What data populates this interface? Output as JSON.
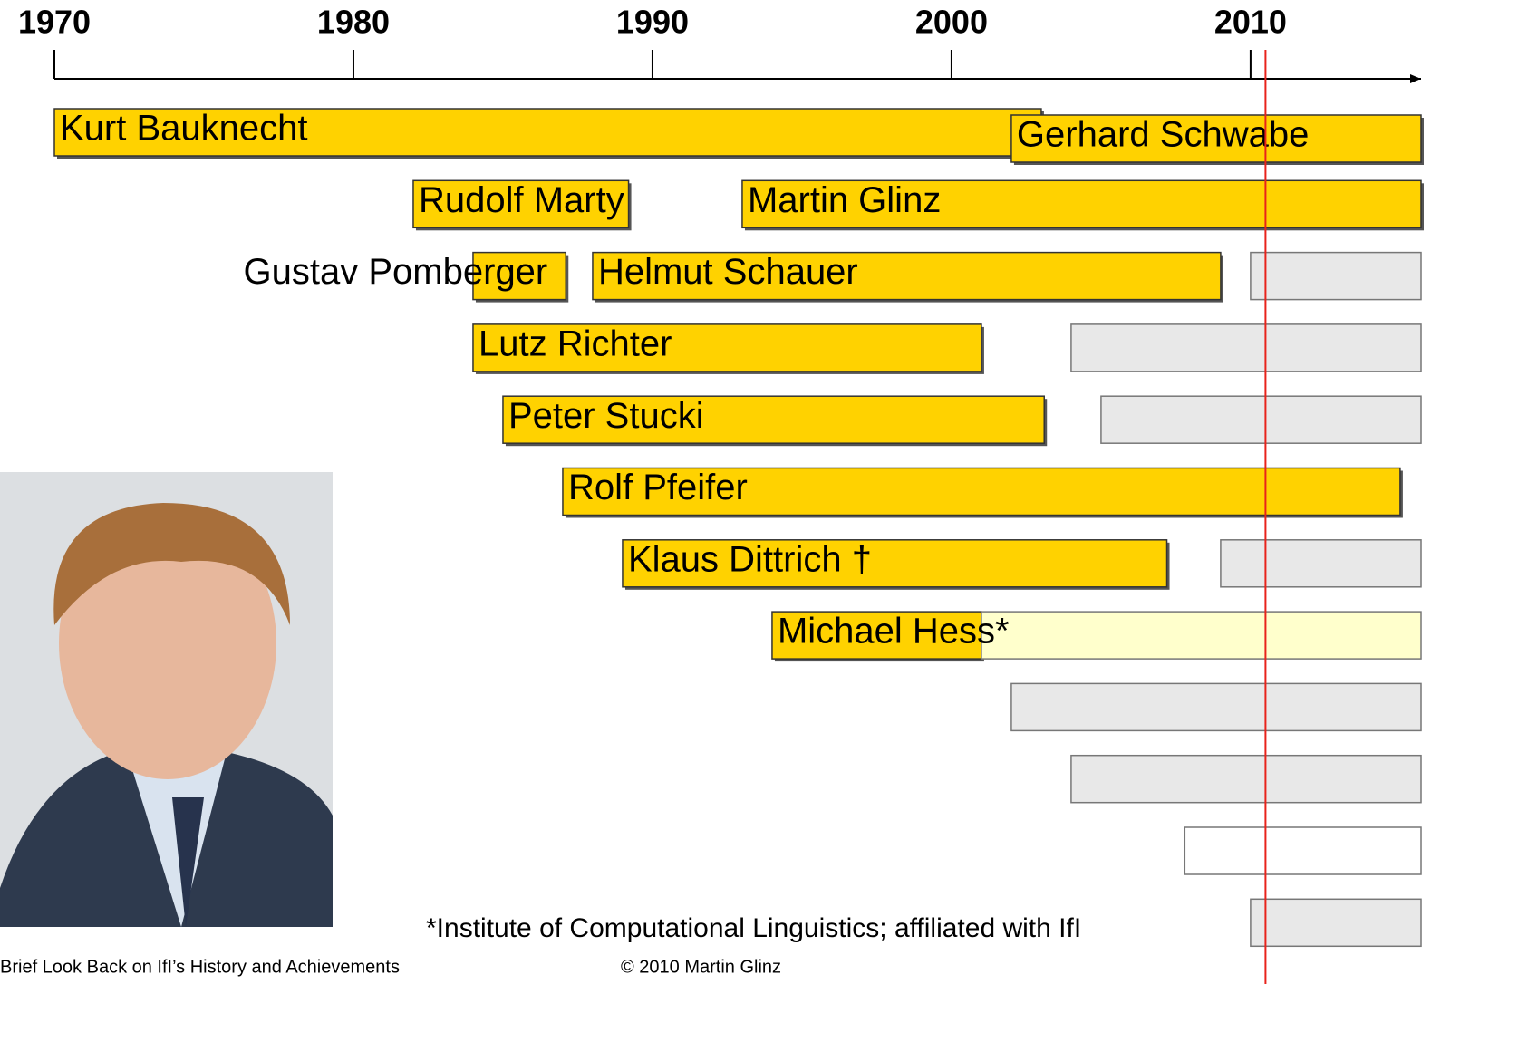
{
  "chart_data": {
    "type": "timeline",
    "xlim": [
      1970,
      2015.7
    ],
    "xticks": [
      1970,
      1980,
      1990,
      2000,
      2010
    ],
    "marker": {
      "value": 2010.5,
      "color": "#e8231b"
    },
    "rows": [
      {
        "bars": [
          {
            "label": "Kurt Bauknecht",
            "start": 1970,
            "end": 2003,
            "color": "#ffd200"
          },
          {
            "label": "Gerhard Schwabe",
            "start": 2002,
            "end": 2015.7,
            "color": "#ffd200"
          }
        ]
      },
      {
        "bars": [
          {
            "label": "Rudolf Marty",
            "start": 1982,
            "end": 1989.2,
            "color": "#ffd200"
          },
          {
            "label": "Martin Glinz",
            "start": 1993,
            "end": 2015.7,
            "color": "#ffd200"
          }
        ]
      },
      {
        "bars": [
          {
            "label": "Gustav Pomberger",
            "start": 1984,
            "end": 1987.1,
            "color": "#ffd200"
          },
          {
            "label": "Helmut Schauer",
            "start": 1988,
            "end": 2009,
            "color": "#ffd200"
          },
          {
            "start": 2010,
            "end": 2015.7,
            "color": "#e8e8e8"
          }
        ]
      },
      {
        "bars": [
          {
            "label": "Lutz Richter",
            "start": 1984,
            "end": 2001,
            "color": "#ffd200"
          },
          {
            "start": 2004,
            "end": 2015.7,
            "color": "#e8e8e8"
          }
        ]
      },
      {
        "bars": [
          {
            "label": "Peter Stucki",
            "start": 1985,
            "end": 2003.1,
            "color": "#ffd200"
          },
          {
            "start": 2005,
            "end": 2015.7,
            "color": "#e8e8e8"
          }
        ]
      },
      {
        "bars": [
          {
            "label": "Rolf Pfeifer",
            "start": 1987,
            "end": 2015,
            "color": "#ffd200"
          }
        ]
      },
      {
        "bars": [
          {
            "label": "Klaus Dittrich †",
            "start": 1989,
            "end": 2007.2,
            "color": "#ffd200"
          },
          {
            "start": 2009,
            "end": 2015.7,
            "color": "#e8e8e8"
          }
        ]
      },
      {
        "bars": [
          {
            "label": "Michael Hess*",
            "start": 1994,
            "end": 2001,
            "color": "#ffd200"
          },
          {
            "start": 2001,
            "end": 2015.7,
            "color": "#ffffcc"
          }
        ]
      },
      {
        "bars": [
          {
            "start": 2002,
            "end": 2015.7,
            "color": "#e8e8e8"
          }
        ]
      },
      {
        "bars": [
          {
            "start": 2004,
            "end": 2015.7,
            "color": "#e8e8e8"
          }
        ]
      },
      {
        "bars": [
          {
            "start": 2007.8,
            "end": 2015.7,
            "color": "#ffffff"
          }
        ]
      },
      {
        "bars": [
          {
            "start": 2010,
            "end": 2015.7,
            "color": "#e8e8e8"
          }
        ]
      }
    ],
    "footnote": "*Institute of Computational Linguistics; affiliated with IfI",
    "footer_left": "Brief Look Back on IfI’s History and Achievements",
    "footer_center": "© 2010 Martin Glinz"
  }
}
